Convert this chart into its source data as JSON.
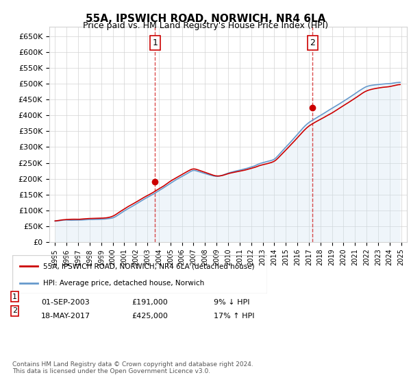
{
  "title": "55A, IPSWICH ROAD, NORWICH, NR4 6LA",
  "subtitle": "Price paid vs. HM Land Registry's House Price Index (HPI)",
  "ylabel_ticks": [
    "£0",
    "£50K",
    "£100K",
    "£150K",
    "£200K",
    "£250K",
    "£300K",
    "£350K",
    "£400K",
    "£450K",
    "£500K",
    "£550K",
    "£600K",
    "£650K"
  ],
  "ytick_values": [
    0,
    50000,
    100000,
    150000,
    200000,
    250000,
    300000,
    350000,
    400000,
    450000,
    500000,
    550000,
    600000,
    650000
  ],
  "ylim": [
    0,
    680000
  ],
  "purchase1_date": "2003-09-01",
  "purchase1_price": 191000,
  "purchase1_label": "1",
  "purchase2_date": "2017-05-18",
  "purchase2_price": 425000,
  "purchase2_label": "2",
  "legend_line1": "55A, IPSWICH ROAD, NORWICH, NR4 6LA (detached house)",
  "legend_line2": "HPI: Average price, detached house, Norwich",
  "table_row1": [
    "1",
    "01-SEP-2003",
    "£191,000",
    "9% ↓ HPI"
  ],
  "table_row2": [
    "2",
    "18-MAY-2017",
    "£425,000",
    "17% ↑ HPI"
  ],
  "footer": "Contains HM Land Registry data © Crown copyright and database right 2024.\nThis data is licensed under the Open Government Licence v3.0.",
  "line_color_red": "#cc0000",
  "line_color_blue": "#6699cc",
  "line_color_fill": "#cce0f0",
  "vline_color": "#cc0000",
  "marker_color": "#cc0000",
  "background_color": "#ffffff"
}
